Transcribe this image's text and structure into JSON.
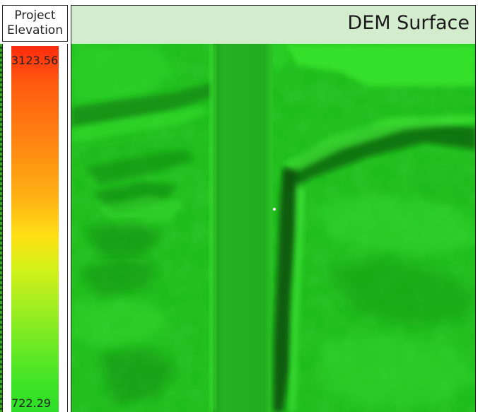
{
  "legend": {
    "title_line1": "Project",
    "title_line2": "Elevation",
    "max_value": "3123.56",
    "min_value": "722.29",
    "ramp_colors": [
      "#ff2a0e",
      "#ff8a12",
      "#ffe016",
      "#a8ee20",
      "#2cde28"
    ]
  },
  "view": {
    "title": "DEM Surface"
  },
  "surface": {
    "base_color": "#22c21e",
    "ridge_color": "#3ae02e",
    "shadow_color": "#0c5a0c"
  }
}
